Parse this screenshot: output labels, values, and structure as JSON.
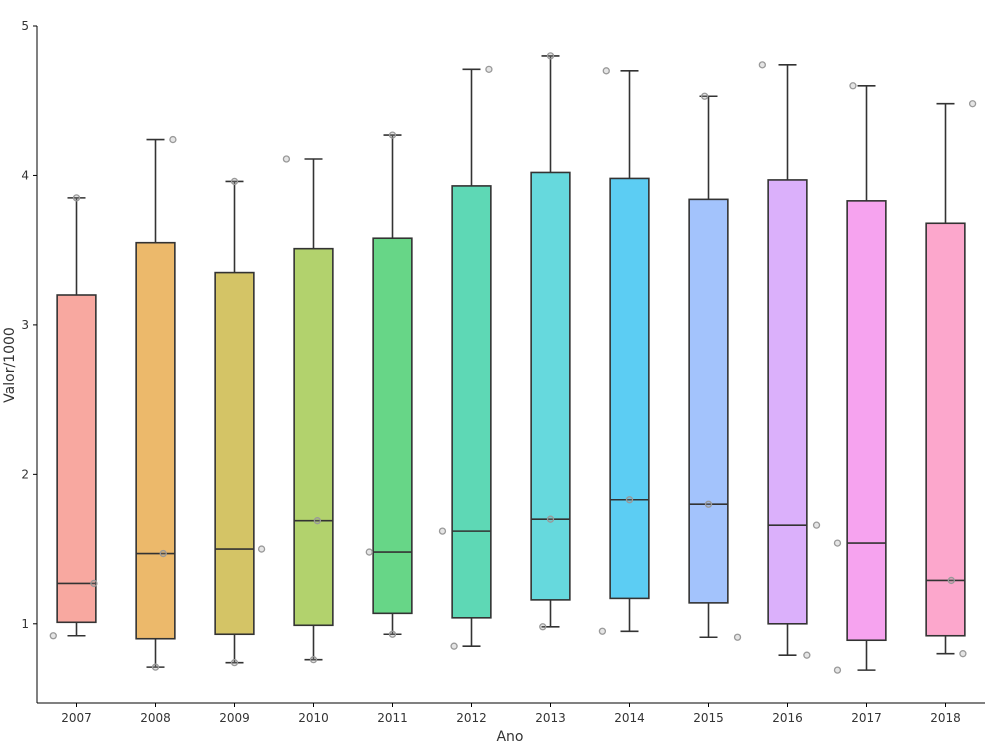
{
  "chart_data": {
    "type": "box",
    "title": "",
    "xlabel": "Ano",
    "ylabel": "Valor/1000",
    "ylim": [
      0.47,
      5.0
    ],
    "yticks": [
      1,
      2,
      3,
      4,
      5
    ],
    "grid": false,
    "legend": "none",
    "categories": [
      "2007",
      "2008",
      "2009",
      "2010",
      "2011",
      "2012",
      "2013",
      "2014",
      "2015",
      "2016",
      "2017",
      "2018"
    ],
    "colors": [
      "#f8a8a0",
      "#ecb96b",
      "#d4c466",
      "#b2d26d",
      "#67d687",
      "#5ed8b5",
      "#66d9dd",
      "#5ccdf3",
      "#a3c3fc",
      "#dbb0fb",
      "#f6a3ef",
      "#fca7cc"
    ],
    "boxes": [
      {
        "year": "2007",
        "min": 0.92,
        "q1": 1.01,
        "median": 1.27,
        "q3": 3.2,
        "max": 3.85
      },
      {
        "year": "2008",
        "min": 0.71,
        "q1": 0.9,
        "median": 1.47,
        "q3": 3.55,
        "max": 4.24
      },
      {
        "year": "2009",
        "min": 0.74,
        "q1": 0.93,
        "median": 1.5,
        "q3": 3.35,
        "max": 3.96
      },
      {
        "year": "2010",
        "min": 0.76,
        "q1": 0.99,
        "median": 1.69,
        "q3": 3.51,
        "max": 4.11
      },
      {
        "year": "2011",
        "min": 0.93,
        "q1": 1.07,
        "median": 1.48,
        "q3": 3.58,
        "max": 4.27
      },
      {
        "year": "2012",
        "min": 0.85,
        "q1": 1.04,
        "median": 1.62,
        "q3": 3.93,
        "max": 4.71
      },
      {
        "year": "2013",
        "min": 0.98,
        "q1": 1.16,
        "median": 1.7,
        "q3": 4.02,
        "max": 4.8
      },
      {
        "year": "2014",
        "min": 0.95,
        "q1": 1.17,
        "median": 1.83,
        "q3": 3.98,
        "max": 4.7
      },
      {
        "year": "2015",
        "min": 0.91,
        "q1": 1.14,
        "median": 1.8,
        "q3": 3.84,
        "max": 4.53
      },
      {
        "year": "2016",
        "min": 0.79,
        "q1": 1.0,
        "median": 1.66,
        "q3": 3.97,
        "max": 4.74
      },
      {
        "year": "2017",
        "min": 0.69,
        "q1": 0.89,
        "median": 1.54,
        "q3": 3.83,
        "max": 4.6
      },
      {
        "year": "2018",
        "min": 0.8,
        "q1": 0.92,
        "median": 1.29,
        "q3": 3.68,
        "max": 4.48
      }
    ],
    "points": [
      {
        "x": "2007",
        "values": [
          0.92,
          1.27,
          3.85
        ]
      },
      {
        "x": "2008",
        "values": [
          0.71,
          1.47,
          4.24
        ]
      },
      {
        "x": "2009",
        "values": [
          0.74,
          1.5,
          3.96
        ]
      },
      {
        "x": "2010",
        "values": [
          0.76,
          1.69,
          4.11
        ]
      },
      {
        "x": "2011",
        "values": [
          0.93,
          1.48,
          4.27
        ]
      },
      {
        "x": "2012",
        "values": [
          0.85,
          1.62,
          4.71
        ]
      },
      {
        "x": "2013",
        "values": [
          0.98,
          1.7,
          4.8
        ]
      },
      {
        "x": "2014",
        "values": [
          0.95,
          1.83,
          4.7
        ]
      },
      {
        "x": "2015",
        "values": [
          0.91,
          1.8,
          4.53
        ]
      },
      {
        "x": "2016",
        "values": [
          0.79,
          1.66,
          4.74
        ]
      },
      {
        "x": "2017",
        "values": [
          0.69,
          1.54,
          4.6
        ]
      },
      {
        "x": "2018",
        "values": [
          0.8,
          1.29,
          4.48
        ]
      }
    ]
  }
}
